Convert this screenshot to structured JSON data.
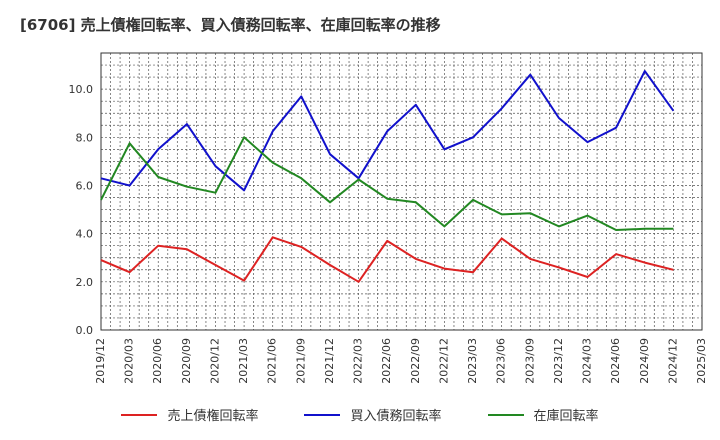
{
  "chart_data": {
    "type": "line",
    "title": "[6706]  売上債権回転率、買入債務回転率、在庫回転率の推移",
    "xlabel": "",
    "ylabel": "",
    "ylim": [
      0,
      11.5
    ],
    "yticks": [
      0,
      2,
      4,
      6,
      8,
      10
    ],
    "ytick_labels": [
      "0.0",
      "2.0",
      "4.0",
      "6.0",
      "8.0",
      "10.0"
    ],
    "x_range": [
      "2019/12",
      "2025/03"
    ],
    "xtick_labels": [
      "2019/12",
      "2020/03",
      "2020/06",
      "2020/09",
      "2020/12",
      "2021/03",
      "2021/06",
      "2021/09",
      "2021/12",
      "2022/03",
      "2022/06",
      "2022/09",
      "2022/12",
      "2023/03",
      "2023/06",
      "2023/09",
      "2023/12",
      "2024/03",
      "2024/06",
      "2024/09",
      "2024/12",
      "2025/03"
    ],
    "grid": true,
    "legend_position": "bottom",
    "x_points": [
      "2019/12",
      "2020/01",
      "2020/02",
      "2020/03",
      "2020/04",
      "2020/05",
      "2020/06",
      "2020/09",
      "2020/12",
      "2021/01",
      "2021/02",
      "2021/03",
      "2021/04",
      "2021/05",
      "2021/06",
      "2021/09",
      "2021/12",
      "2022/01",
      "2022/02",
      "2022/03",
      "2022/04",
      "2022/05",
      "2022/06",
      "2022/09",
      "2022/12",
      "2023/03",
      "2023/06",
      "2023/09",
      "2023/12",
      "2024/03",
      "2024/06",
      "2024/09",
      "2024/12"
    ],
    "series": [
      {
        "name": "売上債権回転率",
        "color": "#dd2222",
        "values": [
          2.9,
          null,
          null,
          2.4,
          null,
          null,
          3.5,
          3.35,
          2.7,
          null,
          null,
          2.05,
          null,
          null,
          3.85,
          3.45,
          2.7,
          null,
          null,
          2.0,
          null,
          null,
          3.7,
          2.95,
          2.55,
          2.4,
          3.8,
          2.95,
          2.6,
          2.2,
          3.15,
          2.8,
          2.5
        ]
      },
      {
        "name": "買入債務回転率",
        "color": "#1111cc",
        "values": [
          6.3,
          null,
          null,
          6.0,
          null,
          null,
          7.5,
          8.55,
          6.8,
          null,
          null,
          5.8,
          null,
          null,
          8.25,
          9.7,
          7.3,
          null,
          null,
          6.3,
          null,
          null,
          8.25,
          9.35,
          7.5,
          8.0,
          9.2,
          10.6,
          8.8,
          7.8,
          8.4,
          10.75,
          9.1
        ]
      },
      {
        "name": "在庫回転率",
        "color": "#228822",
        "values": [
          5.4,
          null,
          null,
          7.75,
          null,
          null,
          6.35,
          5.95,
          5.7,
          null,
          null,
          8.0,
          null,
          null,
          6.95,
          6.3,
          5.3,
          null,
          null,
          6.25,
          null,
          null,
          5.45,
          5.3,
          4.3,
          5.4,
          4.8,
          4.85,
          4.3,
          4.75,
          4.15,
          4.2,
          4.2
        ]
      }
    ]
  }
}
